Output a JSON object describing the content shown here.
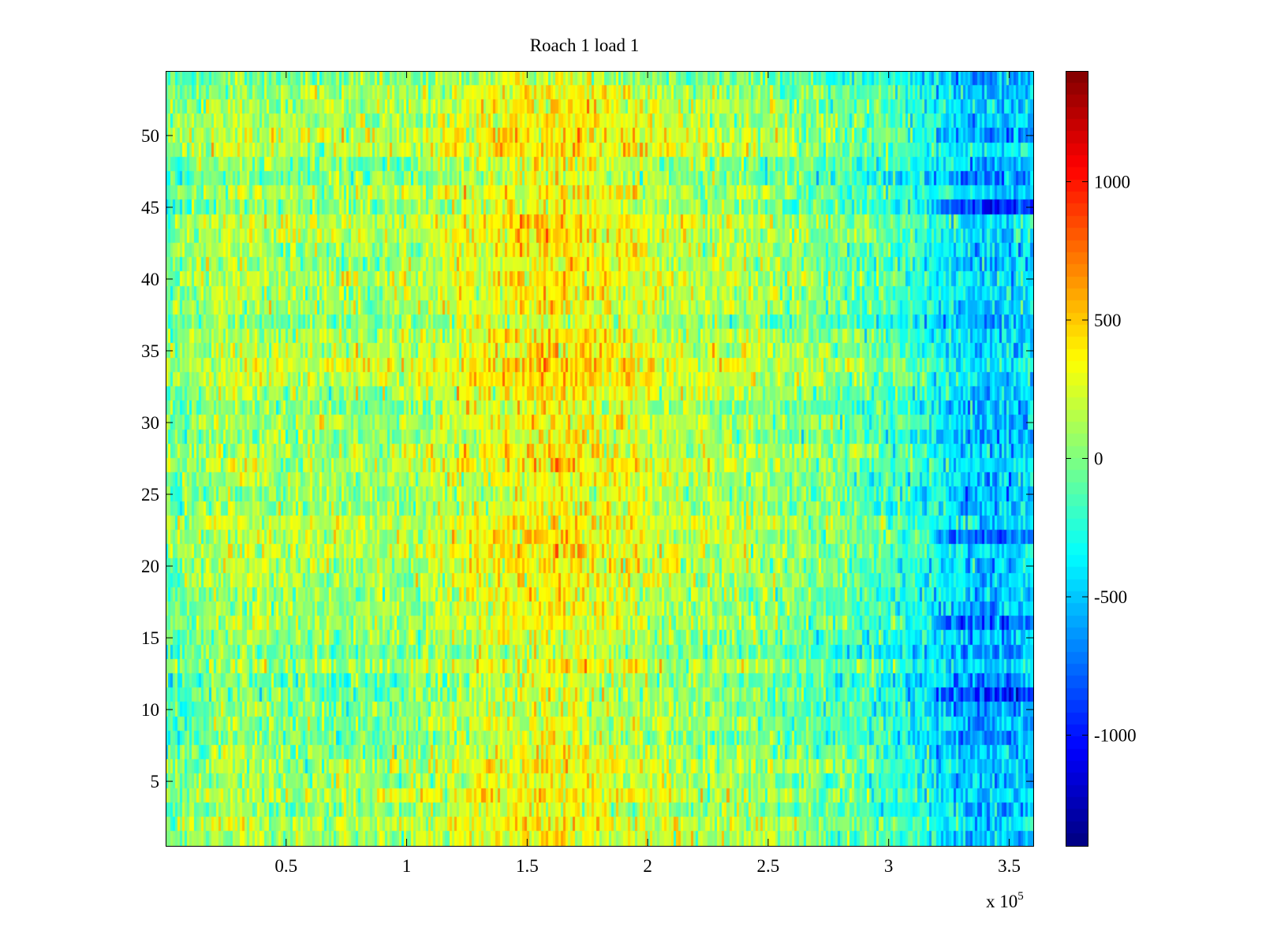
{
  "chart_data": {
    "type": "heatmap",
    "title": "Roach 1 load 1",
    "xlabel": "",
    "ylabel": "",
    "x_multiplier_label": {
      "base": "x 10",
      "exponent": "5"
    },
    "xlim": [
      0,
      3.6
    ],
    "ylim": [
      0.5,
      54.5
    ],
    "x_unit_scale": 100000,
    "rows": 54,
    "columns": 360,
    "x_ticks": [
      0.5,
      1,
      1.5,
      2,
      2.5,
      3,
      3.5
    ],
    "x_tick_labels": [
      "0.5",
      "1",
      "1.5",
      "2",
      "2.5",
      "3",
      "3.5"
    ],
    "y_ticks": [
      5,
      10,
      15,
      20,
      25,
      30,
      35,
      40,
      45,
      50
    ],
    "y_tick_labels": [
      "5",
      "10",
      "15",
      "20",
      "25",
      "30",
      "35",
      "40",
      "45",
      "50"
    ],
    "colorbar": {
      "colormap": "jet",
      "clim": [
        -1400,
        1400
      ],
      "ticks": [
        -1000,
        -500,
        0,
        500,
        1000
      ],
      "tick_labels": [
        "-1000",
        "-500",
        "0",
        "500",
        "1000"
      ]
    },
    "trend_profile": {
      "x_in_axis_units": [
        0,
        0.25,
        0.6,
        1.0,
        1.4,
        1.6,
        1.8,
        2.1,
        2.5,
        3.0,
        3.2,
        3.4,
        3.6
      ],
      "mean_value": [
        -80,
        120,
        60,
        80,
        300,
        360,
        300,
        150,
        50,
        -150,
        -350,
        -550,
        -450
      ]
    },
    "low_value_rows": [
      16,
      11,
      22,
      50,
      45
    ]
  }
}
